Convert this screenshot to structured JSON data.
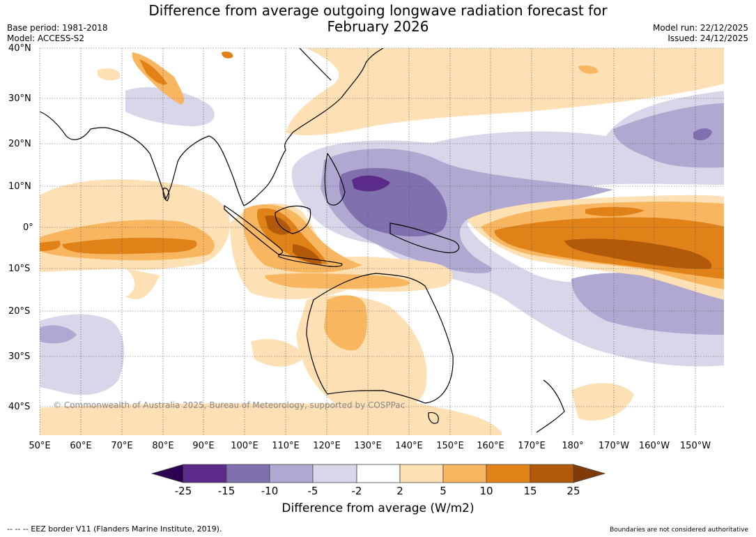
{
  "title_line1": "Difference from average outgoing longwave radiation forecast for",
  "title_line2": "February 2026",
  "meta_left": {
    "base_period": "Base period: 1981-2018",
    "model": "Model: ACCESS-S2"
  },
  "meta_right": {
    "model_run": "Model run: 22/12/2025",
    "issued": "Issued: 24/12/2025"
  },
  "lat_labels": [
    "40°N",
    "30°N",
    "20°N",
    "10°N",
    "0°",
    "10°S",
    "20°S",
    "30°S",
    "40°S"
  ],
  "lon_labels": [
    "50°E",
    "60°E",
    "70°E",
    "80°E",
    "90°E",
    "100°E",
    "110°E",
    "120°E",
    "130°E",
    "140°E",
    "150°E",
    "160°E",
    "170°E",
    "180°",
    "170°W",
    "160°W",
    "150°W"
  ],
  "copyright": "© Commonwealth of Australia 2025, Bureau of Meteorology, supported by COSPPac",
  "colorbar": {
    "label": "Difference from average (W/m2)",
    "ticks": [
      "-25",
      "-15",
      "-10",
      "-5",
      "-2",
      "2",
      "5",
      "10",
      "15",
      "25"
    ],
    "colors": [
      "#2d0050",
      "#5b2a8a",
      "#8070ad",
      "#b0a8d0",
      "#d8d7ea",
      "#ffffff",
      "#fde0b4",
      "#f9b661",
      "#e08218",
      "#b35a0a",
      "#7f3b08"
    ]
  },
  "footer_left": "--  --  -- EEZ border V11 (Flanders Marine Institute, 2019).",
  "footer_right": "Boundaries are not considered authoritative"
}
